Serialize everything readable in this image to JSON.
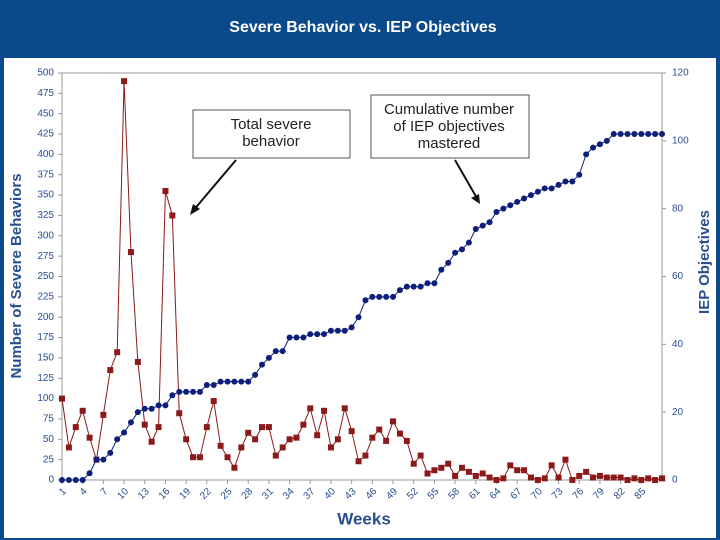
{
  "chart_data": {
    "type": "line",
    "title": "Severe Behavior vs. IEP Objectives",
    "xlabel": "Weeks",
    "ylabel": "Number of Severe Behaviors",
    "y2label": "IEP Objectives",
    "x": [
      1,
      2,
      3,
      4,
      5,
      6,
      7,
      8,
      9,
      10,
      11,
      12,
      13,
      14,
      15,
      16,
      17,
      18,
      19,
      20,
      21,
      22,
      23,
      24,
      25,
      26,
      27,
      28,
      29,
      30,
      31,
      32,
      33,
      34,
      35,
      36,
      37,
      38,
      39,
      40,
      41,
      42,
      43,
      44,
      45,
      46,
      47,
      48,
      49,
      50,
      51,
      52,
      53,
      54,
      55,
      56,
      57,
      58,
      59,
      60,
      61,
      62,
      63,
      64,
      65,
      66,
      67,
      68,
      69,
      70,
      71,
      72,
      73,
      74,
      75,
      76,
      77,
      78,
      79,
      80,
      81,
      82,
      83,
      84,
      85,
      86,
      87,
      88
    ],
    "xlim": [
      1,
      88
    ],
    "xticks": [
      1,
      4,
      7,
      10,
      13,
      16,
      19,
      22,
      25,
      28,
      31,
      34,
      37,
      40,
      43,
      46,
      49,
      52,
      55,
      58,
      61,
      64,
      67,
      70,
      73,
      76,
      79,
      82,
      85
    ],
    "ylim": [
      0,
      500
    ],
    "yticks": [
      0,
      25,
      50,
      75,
      100,
      125,
      150,
      175,
      200,
      225,
      250,
      275,
      300,
      325,
      350,
      375,
      400,
      425,
      450,
      475,
      500
    ],
    "y2lim": [
      0,
      120
    ],
    "y2ticks": [
      0,
      20,
      40,
      60,
      80,
      100,
      120
    ],
    "series": [
      {
        "name": "Total severe behavior",
        "color": "#8b1a1a",
        "marker": "square",
        "values": [
          100,
          40,
          65,
          85,
          52,
          25,
          80,
          135,
          157,
          490,
          280,
          145,
          68,
          47,
          65,
          355,
          325,
          82,
          50,
          28,
          28,
          65,
          97,
          42,
          28,
          15,
          40,
          58,
          50,
          65,
          65,
          30,
          40,
          50,
          52,
          68,
          88,
          55,
          85,
          40,
          50,
          88,
          60,
          23,
          30,
          52,
          62,
          48,
          72,
          57,
          48,
          20,
          30,
          8,
          12,
          15,
          20,
          5,
          15,
          10,
          5,
          8,
          3,
          0,
          2,
          18,
          12,
          12,
          3,
          0,
          2,
          18,
          3,
          25,
          0,
          5,
          10,
          3,
          5,
          3,
          3,
          3,
          0,
          2,
          0,
          2,
          0,
          2
        ]
      },
      {
        "name": "Cumulative number of IEP objectives mastered",
        "color": "#0d1f7a",
        "marker": "circle",
        "axis": "y2",
        "values": [
          0,
          0,
          0,
          0,
          2,
          6,
          6,
          8,
          12,
          14,
          17,
          20,
          21,
          21,
          22,
          22,
          25,
          26,
          26,
          26,
          26,
          28,
          28,
          29,
          29,
          29,
          29,
          29,
          31,
          34,
          36,
          38,
          38,
          42,
          42,
          42,
          43,
          43,
          43,
          44,
          44,
          44,
          45,
          48,
          53,
          54,
          54,
          54,
          54,
          56,
          57,
          57,
          57,
          58,
          58,
          62,
          64,
          67,
          68,
          70,
          74,
          75,
          76,
          79,
          80,
          81,
          82,
          83,
          84,
          85,
          86,
          86,
          87,
          88,
          88,
          90,
          96,
          98,
          99,
          100,
          102,
          102,
          102,
          102,
          102,
          102,
          102,
          102
        ]
      }
    ],
    "annotations": [
      {
        "lines": [
          "Total severe",
          "behavior"
        ]
      },
      {
        "lines": [
          "Cumulative number",
          "of IEP objectives",
          "mastered"
        ]
      }
    ]
  }
}
